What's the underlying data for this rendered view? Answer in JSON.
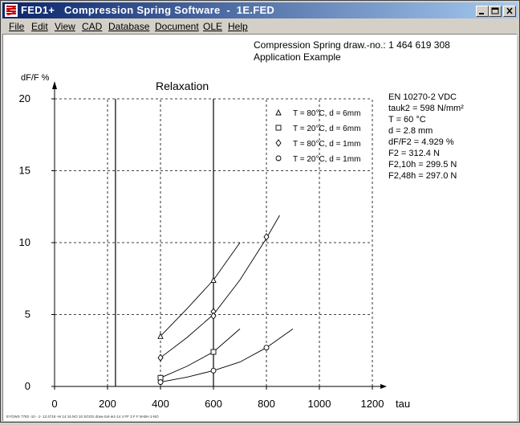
{
  "window": {
    "title": "FED1+   Compression Spring Software  -  1E.FED",
    "buttons": [
      "minimize",
      "maximize",
      "close"
    ]
  },
  "menu": [
    "File",
    "Edit",
    "View",
    "CAD",
    "Database",
    "Document",
    "OLE",
    "Help"
  ],
  "header": {
    "line1": "Compression Spring   draw.-no.: 1 464 619 308",
    "line2": "Application Example"
  },
  "info": [
    "EN 10270-2 VDC",
    "tauk2 = 598 N/mm²",
    "T = 60 °C",
    "d = 2.8 mm",
    "dF/F2 = 4.929 %",
    "F2 = 312.4 N",
    "F2,10h = 299.5 N",
    "F2,48h = 297.0 N"
  ],
  "footer_text": "EYOWS 7783 -10 - 1- 12:4718 -Hi 14 15 NO 10 SGOS draw-Sol-ie1-14 4 FF 3 F F M-BH-1-NO",
  "chart_data": {
    "type": "line",
    "title": "Relaxation",
    "xlabel": "tau",
    "ylabel": "dF/F %",
    "xlim": [
      0,
      1200
    ],
    "ylim": [
      0,
      20
    ],
    "xticks": [
      0,
      200,
      400,
      600,
      800,
      1000,
      1200
    ],
    "yticks": [
      0,
      5,
      10,
      15,
      20
    ],
    "grid": true,
    "vertical_markers": [
      230,
      600
    ],
    "legend_position": "top-right",
    "series": [
      {
        "name": "T = 80°C,  d = 6mm",
        "marker": "triangle",
        "points": [
          [
            400,
            3.5
          ],
          [
            600,
            7.4
          ]
        ],
        "curve": [
          [
            400,
            3.5
          ],
          [
            500,
            5.4
          ],
          [
            600,
            7.4
          ],
          [
            700,
            10.0
          ]
        ]
      },
      {
        "name": "T = 20°C,  d = 6mm",
        "marker": "square",
        "points": [
          [
            400,
            0.6
          ],
          [
            600,
            2.4
          ]
        ],
        "curve": [
          [
            400,
            0.6
          ],
          [
            500,
            1.4
          ],
          [
            600,
            2.4
          ],
          [
            700,
            4.0
          ]
        ]
      },
      {
        "name": "T = 80°C,  d = 1mm",
        "marker": "diamond",
        "points": [
          [
            400,
            2.0
          ],
          [
            600,
            5.2
          ],
          [
            600,
            4.9
          ],
          [
            800,
            10.4
          ]
        ],
        "curve": [
          [
            400,
            2.0
          ],
          [
            500,
            3.4
          ],
          [
            600,
            5.0
          ],
          [
            700,
            7.4
          ],
          [
            800,
            10.3
          ],
          [
            850,
            11.9
          ]
        ]
      },
      {
        "name": "T = 20°C,  d = 1mm",
        "marker": "circle",
        "points": [
          [
            400,
            0.3
          ],
          [
            600,
            1.1
          ],
          [
            800,
            2.7
          ]
        ],
        "curve": [
          [
            400,
            0.3
          ],
          [
            500,
            0.65
          ],
          [
            600,
            1.1
          ],
          [
            700,
            1.7
          ],
          [
            800,
            2.7
          ],
          [
            900,
            4.0
          ]
        ]
      }
    ]
  }
}
